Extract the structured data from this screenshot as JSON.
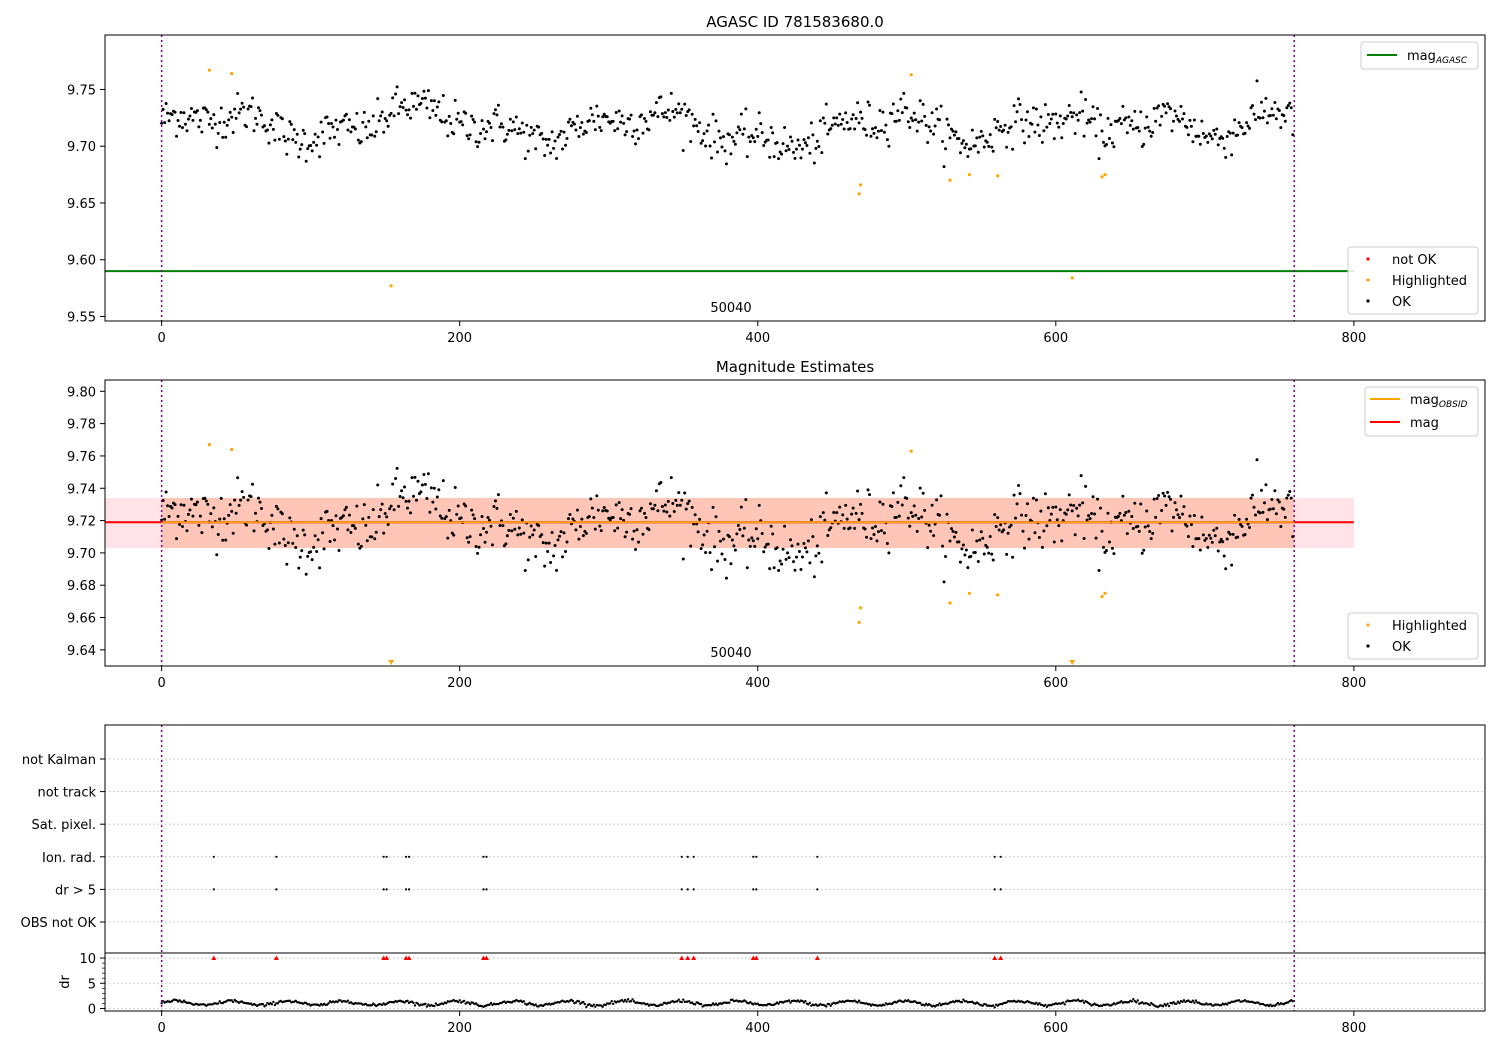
{
  "colors": {
    "ok": "#000000",
    "highlighted": "#ffa500",
    "not_ok": "#ff0000",
    "agasc_line": "#008000",
    "obsid_line": "#ffa500",
    "mag_line": "#ff0000",
    "band_mag": "#ffc0cb",
    "band_obsid": "#ffa07a",
    "obsid_vline": "#800080",
    "grid": "#b0b0b0"
  },
  "chart_data": [
    {
      "type": "scatter",
      "title": "AGASC ID 781583680.0",
      "xlim": [
        -38,
        888
      ],
      "ylim": [
        9.546,
        9.798
      ],
      "xticks": [
        0,
        200,
        400,
        600,
        800
      ],
      "yticks": [
        9.55,
        9.6,
        9.65,
        9.7,
        9.75
      ],
      "ytick_labels": [
        "9.55",
        "9.60",
        "9.65",
        "9.70",
        "9.75"
      ],
      "obsid_label": "50040",
      "obsid_bounds": [
        0,
        760
      ],
      "agasc_mag": 9.59,
      "baseline": 9.718,
      "legend_lines": [
        {
          "label": "mag",
          "sub": "AGASC"
        }
      ],
      "legend_points": [
        {
          "label": "not OK"
        },
        {
          "label": "Highlighted"
        },
        {
          "label": "OK"
        }
      ],
      "highlighted": [
        [
          32,
          9.767
        ],
        [
          47,
          9.764
        ],
        [
          154,
          9.577
        ],
        [
          468,
          9.658
        ],
        [
          469,
          9.666
        ],
        [
          503,
          9.763
        ],
        [
          529,
          9.67
        ],
        [
          542,
          9.675
        ],
        [
          561,
          9.674
        ],
        [
          611,
          9.584
        ],
        [
          631,
          9.673
        ],
        [
          633,
          9.675
        ]
      ]
    },
    {
      "type": "scatter",
      "title": "Magnitude Estimates",
      "xlim": [
        -38,
        888
      ],
      "ylim": [
        9.63,
        9.807
      ],
      "xticks": [
        0,
        200,
        400,
        600,
        800
      ],
      "yticks": [
        9.64,
        9.66,
        9.68,
        9.7,
        9.72,
        9.74,
        9.76,
        9.78,
        9.8
      ],
      "ytick_labels": [
        "9.64",
        "9.66",
        "9.68",
        "9.70",
        "9.72",
        "9.74",
        "9.76",
        "9.78",
        "9.80"
      ],
      "obsid_label": "50040",
      "obsid_bounds": [
        0,
        760
      ],
      "mag": 9.719,
      "mag_band": [
        9.703,
        9.734
      ],
      "mag_band_x": [
        -38,
        800
      ],
      "mag_obsid": 9.719,
      "obsid_band": [
        9.703,
        9.734
      ],
      "legend_lines": [
        {
          "label": "mag",
          "sub": "OBSID"
        },
        {
          "label": "mag",
          "sub": ""
        }
      ],
      "legend_points": [
        {
          "label": "Highlighted"
        },
        {
          "label": "OK"
        }
      ],
      "highlighted": [
        [
          32,
          9.767
        ],
        [
          47,
          9.764
        ],
        [
          468,
          9.657
        ],
        [
          469,
          9.666
        ],
        [
          503,
          9.763
        ],
        [
          529,
          9.669
        ],
        [
          542,
          9.675
        ],
        [
          561,
          9.674
        ],
        [
          631,
          9.673
        ],
        [
          633,
          9.675
        ]
      ],
      "clipped": [
        154,
        611
      ]
    },
    {
      "type": "scatter",
      "title": "",
      "xlim": [
        -38,
        888
      ],
      "xticks": [
        0,
        200,
        400,
        600,
        800
      ],
      "flag_labels": [
        "not Kalman",
        "not track",
        "Sat. pixel.",
        "Ion. rad.",
        "dr > 5",
        "OBS not OK"
      ],
      "flag_events": {
        "Ion. rad.": [
          35,
          77,
          149,
          151,
          164,
          166,
          216,
          218,
          349,
          353,
          357,
          397,
          399,
          440,
          559,
          563
        ],
        "dr > 5": [
          35,
          77,
          149,
          151,
          164,
          166,
          216,
          218,
          349,
          353,
          357,
          397,
          399,
          440,
          559,
          563
        ]
      },
      "dr_label": "dr",
      "dr_ylim": [
        -0.5,
        11
      ],
      "dr_yticks": [
        0,
        5,
        10
      ],
      "dr_ytick_labels": [
        "0",
        "5",
        "10"
      ],
      "dr_threshold": 10,
      "dr_mean": 1.05
    }
  ]
}
